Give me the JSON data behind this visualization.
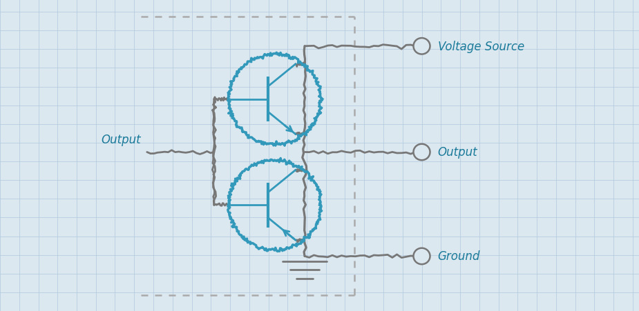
{
  "bg_color": "#dce8f0",
  "grid_color": "#b0c8dc",
  "line_color": "#777777",
  "transistor_color": "#3399bb",
  "text_color": "#1a7a9a",
  "dashed_color": "#aaaaaa",
  "labels": {
    "voltage_source": "Voltage Source",
    "output_right": "Output",
    "ground": "Ground",
    "output_left": "Output"
  },
  "fig_width": 9.25,
  "fig_height": 4.52
}
